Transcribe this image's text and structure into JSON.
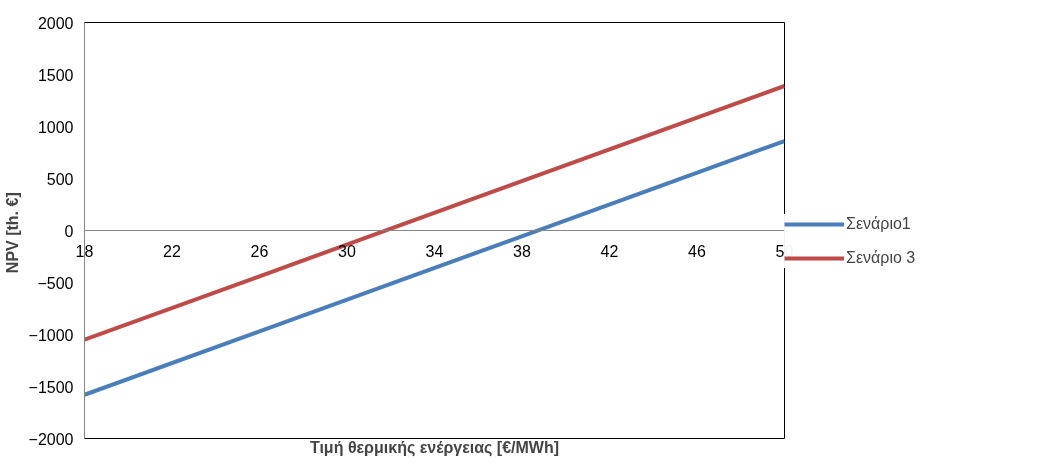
{
  "chart_data": {
    "type": "line",
    "xlabel": "Τιμή θερμικής ενέργειας [€/MWh]",
    "ylabel": "NPV  [th. €]",
    "x": [
      18,
      50
    ],
    "series": [
      {
        "name": "Σενάριο1",
        "color": "#4a7ebb",
        "values": [
          -1580,
          860
        ]
      },
      {
        "name": "Σενάριο 3",
        "color": "#be4b48",
        "values": [
          -1050,
          1390
        ]
      }
    ],
    "xlim": [
      18,
      50
    ],
    "xticks": [
      18,
      22,
      26,
      30,
      34,
      38,
      42,
      46,
      50
    ],
    "ylim": [
      -2000,
      2000
    ],
    "yticks": [
      -2000,
      -1500,
      -1000,
      -500,
      0,
      500,
      1000,
      1500,
      2000
    ],
    "grid": false,
    "legend": "right",
    "marker": "none",
    "line_style": "solid"
  }
}
